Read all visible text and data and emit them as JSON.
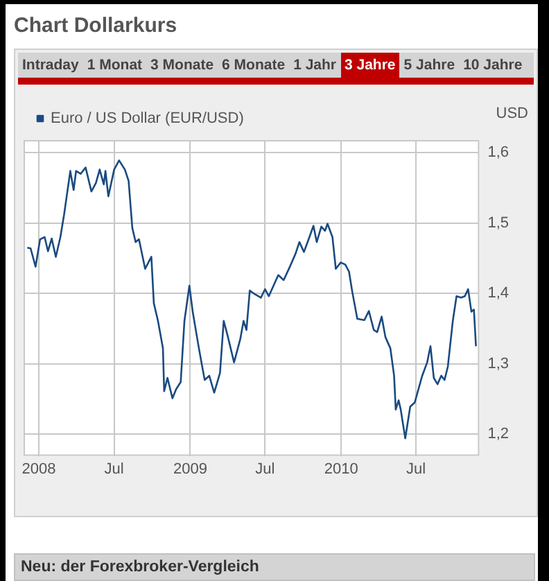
{
  "chart_data": {
    "type": "line",
    "title": "Chart Dollarkurs",
    "ylabel": "USD",
    "annotations": [
      "Intraday",
      "1 Monat",
      "3 Monate",
      "6 Monate",
      "1 Jahr",
      "3 Jahre",
      "5 Jahre",
      "10 Jahre",
      "Neu: der Forexbroker-Vergleich"
    ],
    "series": [
      {
        "name": "Euro / US Dollar (EUR/USD)",
        "color": "#1a4a80",
        "x": [
          "2007-12-04",
          "2007-12-12",
          "2007-12-24",
          "2008-01-04",
          "2008-01-15",
          "2008-01-23",
          "2008-02-01",
          "2008-02-11",
          "2008-02-22",
          "2008-03-02",
          "2008-03-17",
          "2008-03-25",
          "2008-03-31",
          "2008-04-11",
          "2008-04-23",
          "2008-05-07",
          "2008-05-18",
          "2008-05-27",
          "2008-06-06",
          "2008-06-10",
          "2008-06-17",
          "2008-07-01",
          "2008-07-13",
          "2008-07-27",
          "2008-08-05",
          "2008-08-14",
          "2008-08-22",
          "2008-08-30",
          "2008-09-14",
          "2008-09-29",
          "2008-10-05",
          "2008-10-15",
          "2008-10-27",
          "2008-10-30",
          "2008-11-07",
          "2008-11-19",
          "2008-11-28",
          "2008-12-09",
          "2008-12-18",
          "2008-12-30",
          "2009-01-07",
          "2009-01-22",
          "2009-01-30",
          "2009-02-05",
          "2009-02-16",
          "2009-02-28",
          "2009-03-14",
          "2009-03-23",
          "2009-04-01",
          "2009-04-17",
          "2009-05-02",
          "2009-05-10",
          "2009-05-17",
          "2009-05-25",
          "2009-06-06",
          "2009-06-21",
          "2009-07-01",
          "2009-07-10",
          "2009-08-02",
          "2009-08-15",
          "2009-08-30",
          "2009-09-13",
          "2009-09-22",
          "2009-10-03",
          "2009-10-15",
          "2009-10-26",
          "2009-11-03",
          "2009-11-14",
          "2009-11-23",
          "2009-11-29",
          "2009-12-11",
          "2009-12-19",
          "2009-12-31",
          "2010-01-11",
          "2010-01-20",
          "2010-01-28",
          "2010-02-09",
          "2010-02-26",
          "2010-03-09",
          "2010-03-21",
          "2010-03-29",
          "2010-04-09",
          "2010-04-18",
          "2010-04-30",
          "2010-05-09",
          "2010-05-13",
          "2010-05-20",
          "2010-05-25",
          "2010-06-05",
          "2010-06-17",
          "2010-06-28",
          "2010-07-16",
          "2010-07-28",
          "2010-08-05",
          "2010-08-13",
          "2010-08-22",
          "2010-08-31",
          "2010-09-08",
          "2010-09-16",
          "2010-09-28",
          "2010-10-07",
          "2010-10-18",
          "2010-10-27",
          "2010-11-04",
          "2010-11-12",
          "2010-11-18",
          "2010-11-23"
        ],
        "values": [
          1.465,
          1.464,
          1.438,
          1.477,
          1.48,
          1.46,
          1.478,
          1.452,
          1.48,
          1.512,
          1.574,
          1.547,
          1.574,
          1.57,
          1.579,
          1.545,
          1.557,
          1.576,
          1.555,
          1.574,
          1.538,
          1.576,
          1.589,
          1.576,
          1.56,
          1.493,
          1.473,
          1.477,
          1.435,
          1.452,
          1.386,
          1.361,
          1.322,
          1.261,
          1.28,
          1.251,
          1.264,
          1.274,
          1.361,
          1.411,
          1.374,
          1.322,
          1.296,
          1.277,
          1.283,
          1.259,
          1.287,
          1.361,
          1.341,
          1.302,
          1.335,
          1.361,
          1.348,
          1.404,
          1.399,
          1.394,
          1.406,
          1.396,
          1.426,
          1.419,
          1.438,
          1.457,
          1.473,
          1.459,
          1.478,
          1.496,
          1.473,
          1.495,
          1.489,
          1.499,
          1.48,
          1.435,
          1.444,
          1.441,
          1.431,
          1.402,
          1.364,
          1.362,
          1.375,
          1.348,
          1.345,
          1.367,
          1.338,
          1.322,
          1.283,
          1.235,
          1.248,
          1.235,
          1.194,
          1.239,
          1.245,
          1.283,
          1.302,
          1.325,
          1.28,
          1.271,
          1.283,
          1.277,
          1.296,
          1.361,
          1.396,
          1.394,
          1.396,
          1.406,
          1.374,
          1.377,
          1.325
        ]
      }
    ],
    "xlim": [
      "2007-11-25",
      "2010-12-01"
    ],
    "xticks": [
      {
        "value": "2008-01",
        "label": "2008"
      },
      {
        "value": "2008-07",
        "label": "Jul"
      },
      {
        "value": "2009-01",
        "label": "2009"
      },
      {
        "value": "2009-07",
        "label": "Jul"
      },
      {
        "value": "2010-01",
        "label": "2010"
      },
      {
        "value": "2010-07",
        "label": "Jul"
      }
    ],
    "ylim": [
      1.169,
      1.618
    ],
    "yticks": [
      {
        "value": 1.2,
        "label": "1,2"
      },
      {
        "value": 1.3,
        "label": "1,3"
      },
      {
        "value": 1.4,
        "label": "1,4"
      },
      {
        "value": 1.5,
        "label": "1,5"
      },
      {
        "value": 1.6,
        "label": "1,6"
      }
    ],
    "grid": true,
    "legend": "top left",
    "marker": "none",
    "line_style": "solid"
  }
}
